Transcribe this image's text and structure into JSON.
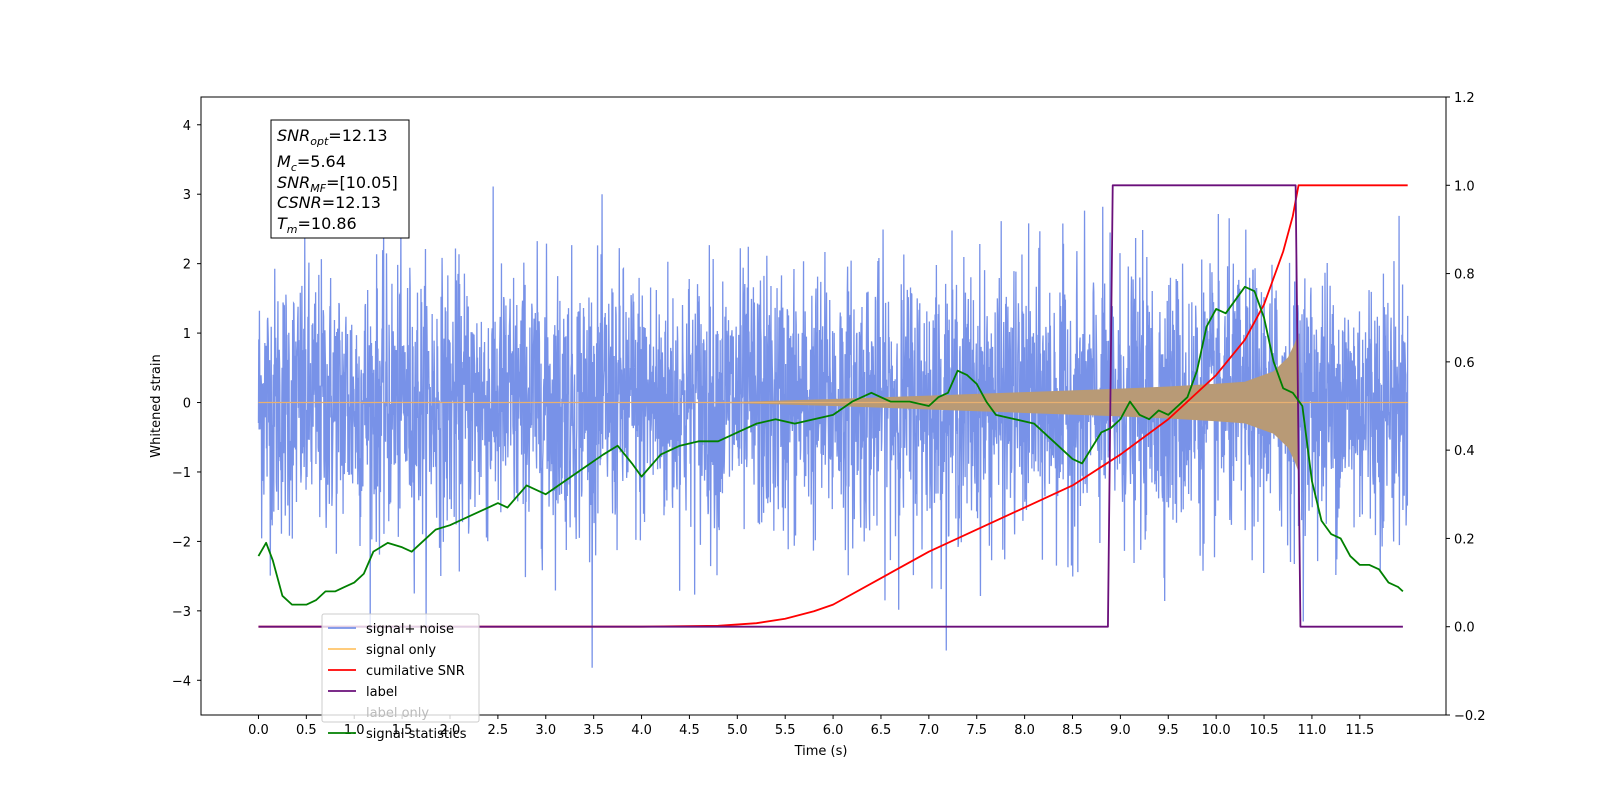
{
  "chart_data": {
    "type": "line",
    "xlabel": "Time (s)",
    "ylabel": "Whitened strain",
    "xlim": [
      -0.6,
      12.4
    ],
    "ylim": [
      -4.5,
      4.4
    ],
    "ylim_right": [
      -0.2,
      1.2
    ],
    "x_ticks": [
      "0.0",
      "0.5",
      "1.0",
      "1.5",
      "2.0",
      "2.5",
      "3.0",
      "3.5",
      "4.0",
      "4.5",
      "5.0",
      "5.5",
      "6.0",
      "6.5",
      "7.0",
      "7.5",
      "8.0",
      "8.5",
      "9.0",
      "9.5",
      "10.0",
      "10.5",
      "11.0",
      "11.5"
    ],
    "y_ticks": [
      "4",
      "3",
      "2",
      "1",
      "0",
      "−1",
      "−2",
      "−3",
      "−4"
    ],
    "y_ticks_right": [
      "1.2",
      "1.0",
      "0.8",
      "0.6",
      "0.4",
      "0.2",
      "0.0",
      "−0.2"
    ],
    "legend_position": "lower-left",
    "legend": [
      {
        "label": "signal+ noise",
        "color": "#7892e8"
      },
      {
        "label": "signal only",
        "color": "#ffc56a"
      },
      {
        "label": "cumilative SNR",
        "color": "#ff0000"
      },
      {
        "label": "label",
        "color": "#6a0f7a"
      },
      {
        "label": "label only",
        "color": "#999999"
      },
      {
        "label": "signal statistics",
        "color": "#008000"
      }
    ],
    "annotation": {
      "snr_opt": "=12.13",
      "mc": "=5.64",
      "snr_mf": "=[10.05]",
      "csnr": "=12.13",
      "tm": "=10.86"
    },
    "series": [
      {
        "name": "signal+ noise",
        "axis": "left",
        "style": "noise",
        "x_range": [
          0.0,
          12.0
        ],
        "std": 0.95,
        "peak_max": 4.05,
        "peak_min": -4.1
      },
      {
        "name": "signal only",
        "axis": "left",
        "style": "chirp-envelope",
        "envelope": [
          [
            4.0,
            0.0
          ],
          [
            5.0,
            0.01
          ],
          [
            6.0,
            0.05
          ],
          [
            7.0,
            0.1
          ],
          [
            8.0,
            0.15
          ],
          [
            9.0,
            0.2
          ],
          [
            9.5,
            0.23
          ],
          [
            10.0,
            0.27
          ],
          [
            10.3,
            0.3
          ],
          [
            10.6,
            0.45
          ],
          [
            10.75,
            0.65
          ],
          [
            10.82,
            0.85
          ],
          [
            10.86,
            1.0
          ],
          [
            10.87,
            0.0
          ]
        ]
      },
      {
        "name": "cumilative SNR",
        "axis": "right",
        "x": [
          0.0,
          4.0,
          4.8,
          5.2,
          5.5,
          5.8,
          6.0,
          6.5,
          7.0,
          7.5,
          8.0,
          8.5,
          9.0,
          9.5,
          10.0,
          10.3,
          10.5,
          10.7,
          10.8,
          10.86,
          10.87,
          12.0
        ],
        "y": [
          0.0,
          0.0,
          0.002,
          0.008,
          0.018,
          0.035,
          0.05,
          0.11,
          0.17,
          0.22,
          0.27,
          0.32,
          0.39,
          0.47,
          0.57,
          0.65,
          0.73,
          0.85,
          0.93,
          1.0,
          1.0,
          1.0
        ]
      },
      {
        "name": "label",
        "axis": "right",
        "x": [
          0.0,
          8.87,
          8.92,
          10.83,
          10.88,
          11.95
        ],
        "y": [
          0.0,
          0.0,
          1.0,
          1.0,
          0.0,
          0.0
        ]
      },
      {
        "name": "signal statistics",
        "axis": "right",
        "x": [
          0.0,
          0.08,
          0.15,
          0.25,
          0.35,
          0.5,
          0.6,
          0.7,
          0.8,
          0.9,
          1.0,
          1.1,
          1.2,
          1.35,
          1.5,
          1.6,
          1.75,
          1.85,
          2.0,
          2.2,
          2.4,
          2.5,
          2.6,
          2.8,
          3.0,
          3.2,
          3.4,
          3.6,
          3.75,
          3.9,
          4.0,
          4.2,
          4.4,
          4.6,
          4.8,
          5.0,
          5.2,
          5.4,
          5.6,
          5.8,
          6.0,
          6.2,
          6.4,
          6.6,
          6.8,
          7.0,
          7.1,
          7.2,
          7.3,
          7.4,
          7.5,
          7.6,
          7.7,
          7.9,
          8.1,
          8.3,
          8.5,
          8.6,
          8.8,
          8.9,
          9.0,
          9.1,
          9.2,
          9.3,
          9.4,
          9.5,
          9.6,
          9.7,
          9.8,
          9.9,
          10.0,
          10.1,
          10.2,
          10.3,
          10.4,
          10.5,
          10.6,
          10.7,
          10.8,
          10.9,
          11.0,
          11.1,
          11.2,
          11.3,
          11.4,
          11.5,
          11.6,
          11.7,
          11.8,
          11.9,
          11.95
        ],
        "y": [
          0.16,
          0.19,
          0.15,
          0.07,
          0.05,
          0.05,
          0.06,
          0.08,
          0.08,
          0.09,
          0.1,
          0.12,
          0.17,
          0.19,
          0.18,
          0.17,
          0.2,
          0.22,
          0.23,
          0.25,
          0.27,
          0.28,
          0.27,
          0.32,
          0.3,
          0.33,
          0.36,
          0.39,
          0.41,
          0.37,
          0.34,
          0.39,
          0.41,
          0.42,
          0.42,
          0.44,
          0.46,
          0.47,
          0.46,
          0.47,
          0.48,
          0.51,
          0.53,
          0.51,
          0.51,
          0.5,
          0.52,
          0.53,
          0.58,
          0.57,
          0.55,
          0.51,
          0.48,
          0.47,
          0.46,
          0.42,
          0.38,
          0.37,
          0.44,
          0.45,
          0.47,
          0.51,
          0.48,
          0.47,
          0.49,
          0.48,
          0.5,
          0.52,
          0.58,
          0.68,
          0.72,
          0.71,
          0.74,
          0.77,
          0.76,
          0.7,
          0.6,
          0.54,
          0.53,
          0.5,
          0.33,
          0.24,
          0.21,
          0.2,
          0.16,
          0.14,
          0.14,
          0.13,
          0.1,
          0.09,
          0.08
        ]
      }
    ]
  }
}
